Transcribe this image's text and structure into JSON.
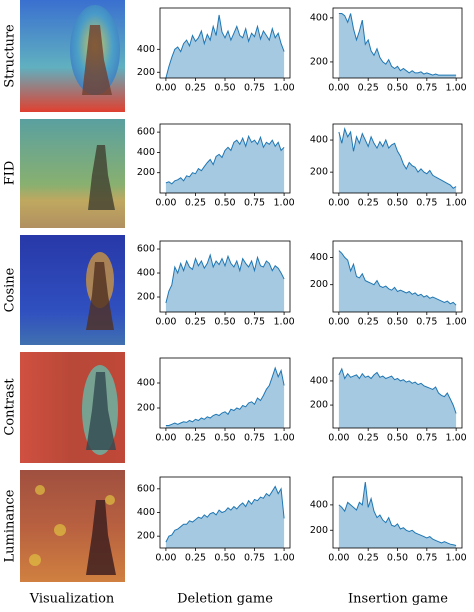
{
  "rows": [
    "Structure",
    "FID",
    "Cosine",
    "Contrast",
    "Luminance"
  ],
  "columns": [
    "Visualization",
    "Deletion game",
    "Insertion game"
  ],
  "chart_data": [
    {
      "type": "area",
      "color": "#1f77b4",
      "xlim": [
        -0.05,
        1.05
      ],
      "ylim": [
        150,
        760
      ],
      "xticks": [
        {
          "value": 0,
          "label": "0.00"
        },
        {
          "value": 0.25,
          "label": "0.25"
        },
        {
          "value": 0.5,
          "label": "0.50"
        },
        {
          "value": 0.75,
          "label": "0.75"
        },
        {
          "value": 1,
          "label": "1.00"
        }
      ],
      "yticks": [
        200,
        400
      ],
      "x": [
        0,
        0.025,
        0.05,
        0.075,
        0.1,
        0.125,
        0.15,
        0.175,
        0.2,
        0.225,
        0.25,
        0.275,
        0.3,
        0.325,
        0.35,
        0.375,
        0.4,
        0.425,
        0.45,
        0.475,
        0.5,
        0.525,
        0.55,
        0.575,
        0.6,
        0.625,
        0.65,
        0.675,
        0.7,
        0.725,
        0.75,
        0.775,
        0.8,
        0.825,
        0.85,
        0.875,
        0.9,
        0.925,
        0.95,
        0.975,
        1
      ],
      "values": [
        150,
        250,
        330,
        400,
        420,
        380,
        450,
        480,
        430,
        520,
        470,
        500,
        560,
        450,
        530,
        480,
        600,
        520,
        700,
        550,
        500,
        560,
        480,
        540,
        600,
        520,
        500,
        580,
        470,
        540,
        510,
        600,
        490,
        560,
        520,
        480,
        580,
        500,
        540,
        450,
        380
      ]
    },
    {
      "type": "area",
      "color": "#1f77b4",
      "xlim": [
        -0.05,
        1.05
      ],
      "ylim": [
        127,
        445
      ],
      "xticks": [
        {
          "value": 0,
          "label": "0.00"
        },
        {
          "value": 0.25,
          "label": "0.25"
        },
        {
          "value": 0.5,
          "label": "0.50"
        },
        {
          "value": 0.75,
          "label": "0.75"
        },
        {
          "value": 1,
          "label": "1.00"
        }
      ],
      "yticks": [
        200,
        400
      ],
      "x": [
        0,
        0.025,
        0.05,
        0.075,
        0.1,
        0.125,
        0.15,
        0.175,
        0.2,
        0.225,
        0.25,
        0.275,
        0.3,
        0.325,
        0.35,
        0.375,
        0.4,
        0.425,
        0.45,
        0.475,
        0.5,
        0.525,
        0.55,
        0.575,
        0.6,
        0.625,
        0.65,
        0.675,
        0.7,
        0.725,
        0.75,
        0.775,
        0.8,
        0.825,
        0.85,
        0.875,
        0.9,
        0.925,
        0.95,
        0.975,
        1
      ],
      "values": [
        420,
        420,
        410,
        380,
        420,
        350,
        300,
        340,
        390,
        280,
        300,
        250,
        230,
        260,
        220,
        200,
        190,
        210,
        180,
        170,
        180,
        160,
        170,
        160,
        150,
        160,
        150,
        150,
        155,
        145,
        150,
        145,
        140,
        145,
        140,
        140,
        140,
        140,
        140,
        140,
        140
      ]
    },
    {
      "type": "area",
      "color": "#1f77b4",
      "xlim": [
        -0.05,
        1.05
      ],
      "ylim": [
        0,
        680
      ],
      "xticks": [
        {
          "value": 0,
          "label": "0.00"
        },
        {
          "value": 0.25,
          "label": "0.25"
        },
        {
          "value": 0.5,
          "label": "0.50"
        },
        {
          "value": 0.75,
          "label": "0.75"
        },
        {
          "value": 1,
          "label": "1.00"
        }
      ],
      "yticks": [
        200,
        400,
        600
      ],
      "x": [
        0,
        0.025,
        0.05,
        0.075,
        0.1,
        0.125,
        0.15,
        0.175,
        0.2,
        0.225,
        0.25,
        0.275,
        0.3,
        0.325,
        0.35,
        0.375,
        0.4,
        0.425,
        0.45,
        0.475,
        0.5,
        0.525,
        0.55,
        0.575,
        0.6,
        0.625,
        0.65,
        0.675,
        0.7,
        0.725,
        0.75,
        0.775,
        0.8,
        0.825,
        0.85,
        0.875,
        0.9,
        0.925,
        0.95,
        0.975,
        1
      ],
      "values": [
        100,
        110,
        90,
        120,
        130,
        150,
        120,
        170,
        160,
        200,
        190,
        240,
        220,
        260,
        300,
        330,
        280,
        360,
        380,
        350,
        420,
        450,
        420,
        500,
        520,
        480,
        540,
        460,
        560,
        500,
        520,
        480,
        550,
        450,
        500,
        480,
        520,
        460,
        500,
        420,
        450
      ]
    },
    {
      "type": "area",
      "color": "#1f77b4",
      "xlim": [
        -0.05,
        1.05
      ],
      "ylim": [
        70,
        500
      ],
      "xticks": [
        {
          "value": 0,
          "label": "0.00"
        },
        {
          "value": 0.25,
          "label": "0.25"
        },
        {
          "value": 0.5,
          "label": "0.50"
        },
        {
          "value": 0.75,
          "label": "0.75"
        },
        {
          "value": 1,
          "label": "1.00"
        }
      ],
      "yticks": [
        200,
        400
      ],
      "x": [
        0,
        0.025,
        0.05,
        0.075,
        0.1,
        0.125,
        0.15,
        0.175,
        0.2,
        0.225,
        0.25,
        0.275,
        0.3,
        0.325,
        0.35,
        0.375,
        0.4,
        0.425,
        0.45,
        0.475,
        0.5,
        0.525,
        0.55,
        0.575,
        0.6,
        0.625,
        0.65,
        0.675,
        0.7,
        0.725,
        0.75,
        0.775,
        0.8,
        0.825,
        0.85,
        0.875,
        0.9,
        0.925,
        0.95,
        0.975,
        1
      ],
      "values": [
        450,
        380,
        470,
        420,
        450,
        330,
        420,
        380,
        440,
        400,
        360,
        420,
        380,
        350,
        390,
        360,
        400,
        350,
        370,
        380,
        330,
        300,
        250,
        220,
        260,
        240,
        230,
        200,
        220,
        200,
        190,
        210,
        180,
        170,
        160,
        150,
        140,
        130,
        120,
        100,
        110
      ]
    },
    {
      "type": "area",
      "color": "#1f77b4",
      "xlim": [
        -0.05,
        1.05
      ],
      "ylim": [
        75,
        667
      ],
      "xticks": [
        {
          "value": 0,
          "label": "0.00"
        },
        {
          "value": 0.25,
          "label": "0.25"
        },
        {
          "value": 0.5,
          "label": "0.50"
        },
        {
          "value": 0.75,
          "label": "0.75"
        },
        {
          "value": 1,
          "label": "1.00"
        }
      ],
      "yticks": [
        200,
        400,
        600
      ],
      "x": [
        0,
        0.025,
        0.05,
        0.075,
        0.1,
        0.125,
        0.15,
        0.175,
        0.2,
        0.225,
        0.25,
        0.275,
        0.3,
        0.325,
        0.35,
        0.375,
        0.4,
        0.425,
        0.45,
        0.475,
        0.5,
        0.525,
        0.55,
        0.575,
        0.6,
        0.625,
        0.65,
        0.675,
        0.7,
        0.725,
        0.75,
        0.775,
        0.8,
        0.825,
        0.85,
        0.875,
        0.9,
        0.925,
        0.95,
        0.975,
        1
      ],
      "values": [
        150,
        250,
        300,
        450,
        400,
        480,
        420,
        500,
        450,
        430,
        520,
        460,
        500,
        440,
        480,
        550,
        450,
        500,
        470,
        520,
        460,
        540,
        480,
        450,
        500,
        420,
        520,
        480,
        450,
        500,
        420,
        530,
        460,
        450,
        500,
        480,
        420,
        460,
        440,
        400,
        350
      ]
    },
    {
      "type": "area",
      "color": "#1f77b4",
      "xlim": [
        -0.05,
        1.05
      ],
      "ylim": [
        0,
        520
      ],
      "xticks": [
        {
          "value": 0,
          "label": "0.00"
        },
        {
          "value": 0.25,
          "label": "0.25"
        },
        {
          "value": 0.5,
          "label": "0.50"
        },
        {
          "value": 0.75,
          "label": "0.75"
        },
        {
          "value": 1,
          "label": "1.00"
        }
      ],
      "yticks": [
        200,
        400
      ],
      "x": [
        0,
        0.025,
        0.05,
        0.075,
        0.1,
        0.125,
        0.15,
        0.175,
        0.2,
        0.225,
        0.25,
        0.275,
        0.3,
        0.325,
        0.35,
        0.375,
        0.4,
        0.425,
        0.45,
        0.475,
        0.5,
        0.525,
        0.55,
        0.575,
        0.6,
        0.625,
        0.65,
        0.675,
        0.7,
        0.725,
        0.75,
        0.775,
        0.8,
        0.825,
        0.85,
        0.875,
        0.9,
        0.925,
        0.95,
        0.975,
        1
      ],
      "values": [
        450,
        430,
        400,
        380,
        300,
        350,
        260,
        250,
        280,
        230,
        220,
        210,
        200,
        230,
        190,
        180,
        190,
        170,
        160,
        180,
        150,
        160,
        150,
        140,
        150,
        130,
        140,
        120,
        130,
        110,
        120,
        100,
        110,
        100,
        90,
        80,
        70,
        80,
        60,
        70,
        50
      ]
    },
    {
      "type": "area",
      "color": "#1f77b4",
      "xlim": [
        -0.05,
        1.05
      ],
      "ylim": [
        40,
        600
      ],
      "xticks": [
        {
          "value": 0,
          "label": "0.00"
        },
        {
          "value": 0.25,
          "label": "0.25"
        },
        {
          "value": 0.5,
          "label": "0.50"
        },
        {
          "value": 0.75,
          "label": "0.75"
        },
        {
          "value": 1,
          "label": "1.00"
        }
      ],
      "yticks": [
        200,
        400
      ],
      "x": [
        0,
        0.025,
        0.05,
        0.075,
        0.1,
        0.125,
        0.15,
        0.175,
        0.2,
        0.225,
        0.25,
        0.275,
        0.3,
        0.325,
        0.35,
        0.375,
        0.4,
        0.425,
        0.45,
        0.475,
        0.5,
        0.525,
        0.55,
        0.575,
        0.6,
        0.625,
        0.65,
        0.675,
        0.7,
        0.725,
        0.75,
        0.775,
        0.8,
        0.825,
        0.85,
        0.875,
        0.9,
        0.925,
        0.95,
        0.975,
        1
      ],
      "values": [
        60,
        60,
        70,
        80,
        70,
        80,
        90,
        85,
        100,
        90,
        110,
        100,
        120,
        110,
        130,
        120,
        140,
        150,
        140,
        160,
        170,
        150,
        190,
        180,
        200,
        190,
        220,
        210,
        240,
        250,
        230,
        280,
        260,
        300,
        350,
        380,
        450,
        520,
        450,
        500,
        380
      ]
    },
    {
      "type": "area",
      "color": "#1f77b4",
      "xlim": [
        -0.05,
        1.05
      ],
      "ylim": [
        10,
        590
      ],
      "xticks": [
        {
          "value": 0,
          "label": "0.00"
        },
        {
          "value": 0.25,
          "label": "0.25"
        },
        {
          "value": 0.5,
          "label": "0.50"
        },
        {
          "value": 0.75,
          "label": "0.75"
        },
        {
          "value": 1,
          "label": "1.00"
        }
      ],
      "yticks": [
        200,
        400
      ],
      "x": [
        0,
        0.025,
        0.05,
        0.075,
        0.1,
        0.125,
        0.15,
        0.175,
        0.2,
        0.225,
        0.25,
        0.275,
        0.3,
        0.325,
        0.35,
        0.375,
        0.4,
        0.425,
        0.45,
        0.475,
        0.5,
        0.525,
        0.55,
        0.575,
        0.6,
        0.625,
        0.65,
        0.675,
        0.7,
        0.725,
        0.75,
        0.775,
        0.8,
        0.825,
        0.85,
        0.875,
        0.9,
        0.925,
        0.95,
        0.975,
        1
      ],
      "values": [
        450,
        500,
        420,
        460,
        430,
        440,
        450,
        420,
        460,
        430,
        440,
        420,
        450,
        470,
        430,
        440,
        420,
        430,
        440,
        410,
        420,
        400,
        410,
        390,
        400,
        380,
        390,
        370,
        380,
        360,
        350,
        340,
        330,
        350,
        300,
        280,
        270,
        300,
        250,
        200,
        130
      ]
    },
    {
      "type": "area",
      "color": "#1f77b4",
      "xlim": [
        -0.05,
        1.05
      ],
      "ylim": [
        100,
        700
      ],
      "xticks": [
        {
          "value": 0,
          "label": "0.00"
        },
        {
          "value": 0.25,
          "label": "0.25"
        },
        {
          "value": 0.5,
          "label": "0.50"
        },
        {
          "value": 0.75,
          "label": "0.75"
        },
        {
          "value": 1,
          "label": "1.00"
        }
      ],
      "yticks": [
        200,
        400,
        600
      ],
      "x": [
        0,
        0.025,
        0.05,
        0.075,
        0.1,
        0.125,
        0.15,
        0.175,
        0.2,
        0.225,
        0.25,
        0.275,
        0.3,
        0.325,
        0.35,
        0.375,
        0.4,
        0.425,
        0.45,
        0.475,
        0.5,
        0.525,
        0.55,
        0.575,
        0.6,
        0.625,
        0.65,
        0.675,
        0.7,
        0.725,
        0.75,
        0.775,
        0.8,
        0.825,
        0.85,
        0.875,
        0.9,
        0.925,
        0.95,
        0.975,
        1
      ],
      "values": [
        150,
        200,
        210,
        250,
        260,
        280,
        300,
        300,
        330,
        320,
        340,
        360,
        350,
        380,
        360,
        390,
        400,
        380,
        420,
        400,
        410,
        440,
        420,
        450,
        430,
        460,
        480,
        450,
        500,
        470,
        510,
        500,
        530,
        520,
        560,
        540,
        580,
        620,
        560,
        600,
        350
      ]
    },
    {
      "type": "area",
      "color": "#1f77b4",
      "xlim": [
        -0.05,
        1.05
      ],
      "ylim": [
        60,
        620
      ],
      "xticks": [
        {
          "value": 0,
          "label": "0.00"
        },
        {
          "value": 0.25,
          "label": "0.25"
        },
        {
          "value": 0.5,
          "label": "0.50"
        },
        {
          "value": 0.75,
          "label": "0.75"
        },
        {
          "value": 1,
          "label": "1.00"
        }
      ],
      "yticks": [
        200,
        400
      ],
      "x": [
        0,
        0.025,
        0.05,
        0.075,
        0.1,
        0.125,
        0.15,
        0.175,
        0.2,
        0.225,
        0.25,
        0.275,
        0.3,
        0.325,
        0.35,
        0.375,
        0.4,
        0.425,
        0.45,
        0.475,
        0.5,
        0.525,
        0.55,
        0.575,
        0.6,
        0.625,
        0.65,
        0.675,
        0.7,
        0.725,
        0.75,
        0.775,
        0.8,
        0.825,
        0.85,
        0.875,
        0.9,
        0.925,
        0.95,
        0.975,
        1
      ],
      "values": [
        400,
        380,
        350,
        420,
        400,
        380,
        360,
        420,
        400,
        580,
        380,
        450,
        350,
        300,
        320,
        280,
        260,
        300,
        240,
        230,
        250,
        210,
        220,
        200,
        190,
        200,
        180,
        170,
        160,
        150,
        140,
        150,
        130,
        120,
        110,
        100,
        110,
        100,
        90,
        85,
        80
      ]
    }
  ]
}
